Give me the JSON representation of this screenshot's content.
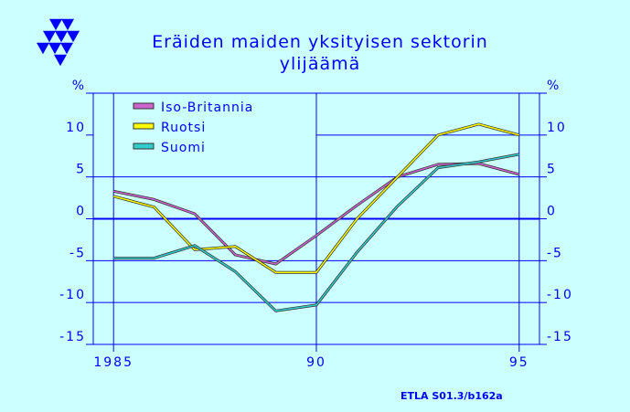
{
  "colors": {
    "background": "#ccffff",
    "accent": "#0000ff"
  },
  "logo_icon": "etla-triangles-logo",
  "title_lines": [
    "Eräiden maiden yksityisen sektorin",
    "ylijäämä"
  ],
  "source_note": "ETLA S01.3/b162a",
  "chart_data": {
    "type": "line",
    "title": "Eräiden maiden yksityisen sektorin ylijäämä",
    "xlabel": "",
    "ylabel": "%",
    "ylabel_right": "%",
    "xlim": [
      1984.5,
      1995.5
    ],
    "ylim": [
      -15,
      15
    ],
    "x_ticks": [
      1985,
      1990,
      1995
    ],
    "x_tick_labels": [
      "1985",
      "90",
      "95"
    ],
    "y_ticks": [
      -15,
      -10,
      -5,
      0,
      5,
      10,
      15
    ],
    "y_tick_labels": [
      "-15",
      "-10",
      "-5",
      "0",
      "5",
      "10",
      "%"
    ],
    "grid": true,
    "zero_line": true,
    "legend_position": "top-left",
    "x": [
      1985,
      1986,
      1987,
      1988,
      1989,
      1990,
      1991,
      1992,
      1993,
      1994,
      1995
    ],
    "series": [
      {
        "name": "Iso-Britannia",
        "color": "#cc66cc",
        "values": [
          3.3,
          2.3,
          0.6,
          -4.3,
          -5.4,
          -2.0,
          1.6,
          5.0,
          6.5,
          6.6,
          5.3
        ]
      },
      {
        "name": "Ruotsi",
        "color": "#ffff00",
        "values": [
          2.7,
          1.4,
          -3.7,
          -3.3,
          -6.4,
          -6.4,
          0.0,
          5.0,
          10.0,
          11.3,
          10.0
        ]
      },
      {
        "name": "Suomi",
        "color": "#33cccc",
        "values": [
          -4.7,
          -4.7,
          -3.2,
          -6.3,
          -11.0,
          -10.3,
          -4.0,
          1.5,
          6.1,
          6.8,
          7.7
        ]
      }
    ]
  }
}
